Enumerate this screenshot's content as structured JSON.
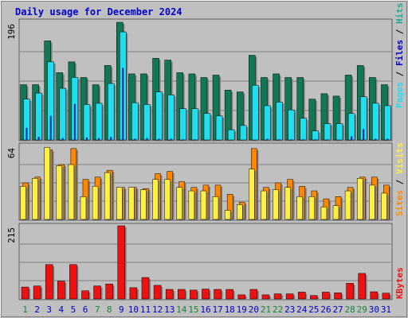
{
  "title": "Daily usage for December 2024",
  "colors": {
    "pages": "#117755",
    "files": "#22ddee",
    "hits": "#22aa99",
    "sites": "#ff8800",
    "visits": "#ffee44",
    "kbytes": "#ee1111",
    "weekday": "#0000cc",
    "weekend": "#118833",
    "title": "#0000cc",
    "plot_bg": "#c0c0c0",
    "frame": "#a0a0a0"
  },
  "chart_data": [
    {
      "type": "bar",
      "panel": "top",
      "ymax_label": "196",
      "ylim": [
        0,
        196
      ],
      "categories": [
        "1",
        "2",
        "3",
        "4",
        "5",
        "6",
        "7",
        "8",
        "9",
        "10",
        "11",
        "12",
        "13",
        "14",
        "15",
        "16",
        "17",
        "18",
        "19",
        "20",
        "21",
        "22",
        "23",
        "24",
        "25",
        "26",
        "27",
        "28",
        "29",
        "30",
        "31"
      ],
      "weekend_days": [
        1,
        7,
        8,
        14,
        15,
        21,
        22,
        28,
        29
      ],
      "legend": [
        "Pages",
        "/",
        "Files",
        "/",
        "Hits"
      ],
      "series": [
        {
          "name": "Hits",
          "values": [
            92,
            92,
            165,
            112,
            130,
            104,
            92,
            124,
            196,
            110,
            110,
            136,
            133,
            112,
            110,
            104,
            108,
            83,
            80,
            141,
            104,
            110,
            104,
            104,
            68,
            77,
            73,
            108,
            124,
            104,
            92
          ]
        },
        {
          "name": "Files",
          "values": [
            68,
            78,
            130,
            86,
            104,
            59,
            61,
            94,
            180,
            62,
            59,
            80,
            75,
            52,
            52,
            44,
            40,
            17,
            24,
            91,
            57,
            63,
            50,
            36,
            15,
            27,
            27,
            44,
            72,
            61,
            57
          ]
        },
        {
          "name": "Pages",
          "values": [
            20,
            5,
            40,
            3,
            60,
            4,
            3,
            5,
            120,
            2,
            3,
            2,
            2,
            1,
            1,
            0,
            0,
            0,
            0,
            0,
            2,
            1,
            1,
            1,
            1,
            1,
            0,
            6,
            18,
            2,
            2
          ]
        }
      ]
    },
    {
      "type": "bar",
      "panel": "middle",
      "ymax_label": "64",
      "ylim": [
        0,
        64
      ],
      "categories": [
        "1",
        "2",
        "3",
        "4",
        "5",
        "6",
        "7",
        "8",
        "9",
        "10",
        "11",
        "12",
        "13",
        "14",
        "15",
        "16",
        "17",
        "18",
        "19",
        "20",
        "21",
        "22",
        "23",
        "24",
        "25",
        "26",
        "27",
        "28",
        "29",
        "30",
        "31"
      ],
      "legend": [
        "Sites",
        "/",
        "Visits"
      ],
      "series": [
        {
          "name": "Sites",
          "values": [
            32,
            37,
            61,
            48,
            62,
            35,
            37,
            43,
            28,
            28,
            27,
            40,
            42,
            33,
            28,
            30,
            30,
            22,
            15,
            62,
            28,
            32,
            35,
            29,
            25,
            18,
            20,
            28,
            37,
            37,
            30
          ]
        },
        {
          "name": "Visits",
          "values": [
            29,
            36,
            63,
            47,
            48,
            20,
            29,
            41,
            28,
            28,
            26,
            35,
            35,
            28,
            25,
            25,
            20,
            8,
            13,
            44,
            25,
            26,
            28,
            20,
            20,
            11,
            12,
            25,
            36,
            30,
            23
          ]
        }
      ]
    },
    {
      "type": "bar",
      "panel": "bottom",
      "ymax_label": "215",
      "ylim": [
        0,
        215
      ],
      "categories": [
        "1",
        "2",
        "3",
        "4",
        "5",
        "6",
        "7",
        "8",
        "9",
        "10",
        "11",
        "12",
        "13",
        "14",
        "15",
        "16",
        "17",
        "18",
        "19",
        "20",
        "21",
        "22",
        "23",
        "24",
        "25",
        "26",
        "27",
        "28",
        "29",
        "30",
        "31"
      ],
      "legend": [
        "KBytes"
      ],
      "series": [
        {
          "name": "KBytes",
          "values": [
            35,
            38,
            101,
            52,
            101,
            24,
            38,
            44,
            215,
            33,
            63,
            40,
            28,
            28,
            26,
            29,
            28,
            28,
            12,
            28,
            12,
            15,
            15,
            20,
            10,
            20,
            18,
            46,
            75,
            21,
            17
          ]
        }
      ]
    }
  ]
}
